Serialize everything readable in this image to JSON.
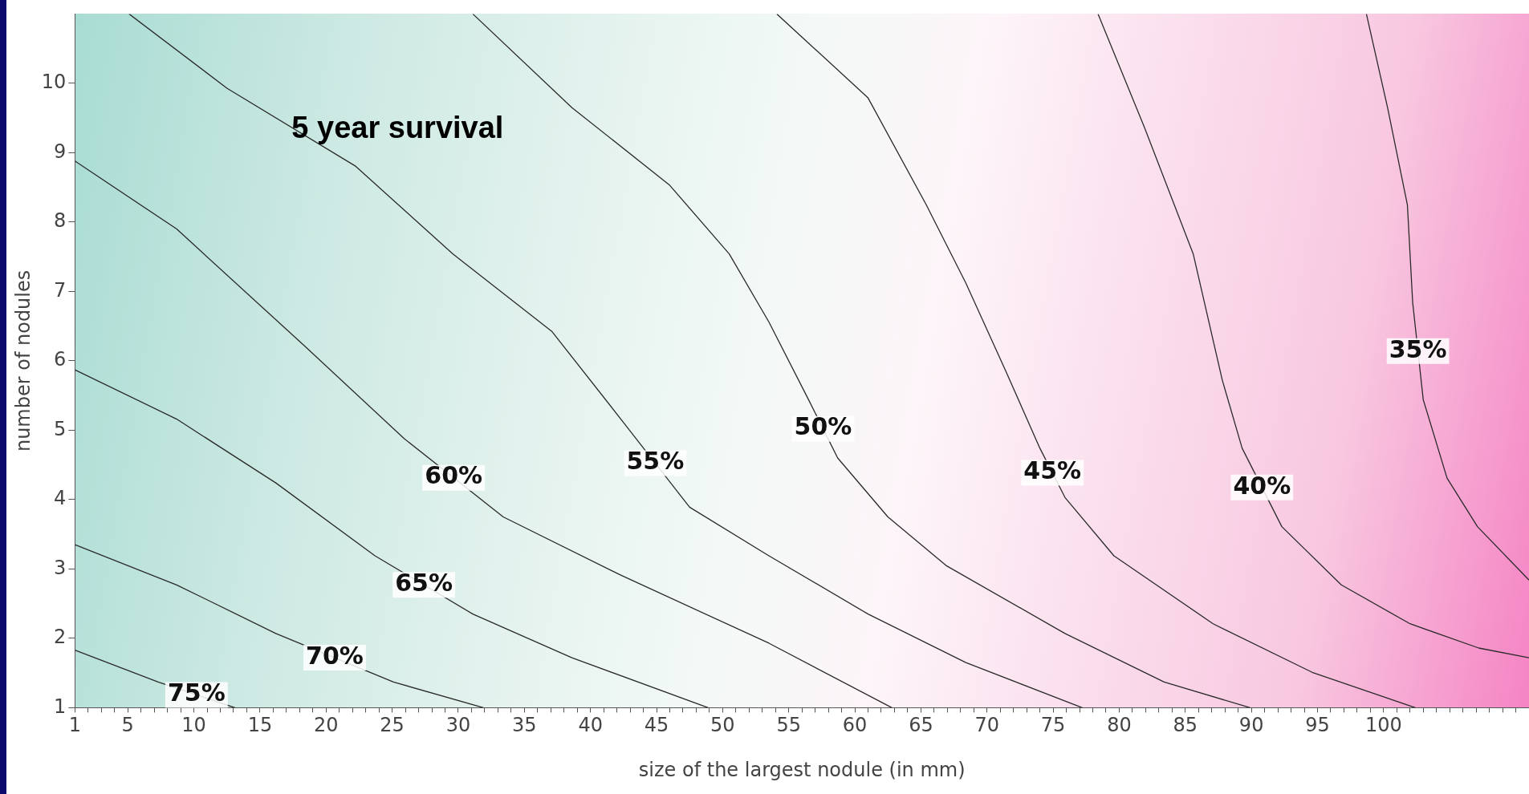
{
  "chart_data": {
    "type": "line",
    "title": "5 year survival",
    "xlabel": "size of the largest nodule (in mm)",
    "ylabel": "number of nodules",
    "xlim": [
      1,
      111
    ],
    "ylim": [
      1,
      11
    ],
    "xticks": [
      1,
      {
        "value": 2,
        "label": null
      },
      {
        "value": 3,
        "label": null
      },
      {
        "value": 4,
        "label": null
      },
      5,
      {
        "value": 6,
        "label": null
      },
      {
        "value": 7,
        "label": null
      },
      {
        "value": 8,
        "label": null
      },
      {
        "value": 9,
        "label": null
      },
      10,
      {
        "value": 11,
        "label": null
      },
      {
        "value": 12,
        "label": null
      },
      {
        "value": 13,
        "label": null
      },
      {
        "value": 14,
        "label": null
      },
      15,
      {
        "value": 16,
        "label": null
      },
      {
        "value": 17,
        "label": null
      },
      {
        "value": 18,
        "label": null
      },
      {
        "value": 19,
        "label": null
      },
      20,
      {
        "value": 21,
        "label": null
      },
      {
        "value": 22,
        "label": null
      },
      {
        "value": 23,
        "label": null
      },
      {
        "value": 24,
        "label": null
      },
      25,
      {
        "value": 26,
        "label": null
      },
      {
        "value": 27,
        "label": null
      },
      {
        "value": 28,
        "label": null
      },
      {
        "value": 29,
        "label": null
      },
      30,
      {
        "value": 31,
        "label": null
      },
      {
        "value": 32,
        "label": null
      },
      {
        "value": 33,
        "label": null
      },
      {
        "value": 34,
        "label": null
      },
      35,
      {
        "value": 36,
        "label": null
      },
      {
        "value": 37,
        "label": null
      },
      {
        "value": 38,
        "label": null
      },
      {
        "value": 39,
        "label": null
      },
      40,
      {
        "value": 41,
        "label": null
      },
      {
        "value": 42,
        "label": null
      },
      {
        "value": 43,
        "label": null
      },
      {
        "value": 44,
        "label": null
      },
      45,
      {
        "value": 46,
        "label": null
      },
      {
        "value": 47,
        "label": null
      },
      {
        "value": 48,
        "label": null
      },
      {
        "value": 49,
        "label": null
      },
      50,
      {
        "value": 51,
        "label": null
      },
      {
        "value": 52,
        "label": null
      },
      {
        "value": 53,
        "label": null
      },
      {
        "value": 54,
        "label": null
      },
      55,
      {
        "value": 56,
        "label": null
      },
      {
        "value": 57,
        "label": null
      },
      {
        "value": 58,
        "label": null
      },
      {
        "value": 59,
        "label": null
      },
      60,
      {
        "value": 61,
        "label": null
      },
      {
        "value": 62,
        "label": null
      },
      {
        "value": 63,
        "label": null
      },
      {
        "value": 64,
        "label": null
      },
      65,
      {
        "value": 66,
        "label": null
      },
      {
        "value": 67,
        "label": null
      },
      {
        "value": 68,
        "label": null
      },
      {
        "value": 69,
        "label": null
      },
      70,
      {
        "value": 71,
        "label": null
      },
      {
        "value": 72,
        "label": null
      },
      {
        "value": 73,
        "label": null
      },
      {
        "value": 74,
        "label": null
      },
      75,
      {
        "value": 76,
        "label": null
      },
      {
        "value": 77,
        "label": null
      },
      {
        "value": 78,
        "label": null
      },
      {
        "value": 79,
        "label": null
      },
      80,
      {
        "value": 81,
        "label": null
      },
      {
        "value": 82,
        "label": null
      },
      {
        "value": 83,
        "label": null
      },
      {
        "value": 84,
        "label": null
      },
      85,
      {
        "value": 86,
        "label": null
      },
      {
        "value": 87,
        "label": null
      },
      {
        "value": 88,
        "label": null
      },
      {
        "value": 89,
        "label": null
      },
      90,
      {
        "value": 91,
        "label": null
      },
      {
        "value": 92,
        "label": null
      },
      {
        "value": 93,
        "label": null
      },
      {
        "value": 94,
        "label": null
      },
      95,
      {
        "value": 96,
        "label": null
      },
      {
        "value": 97,
        "label": null
      },
      {
        "value": 98,
        "label": null
      },
      {
        "value": 99,
        "label": null
      },
      100,
      {
        "value": 101,
        "label": null
      },
      {
        "value": 102,
        "label": null
      },
      {
        "value": 103,
        "label": null
      },
      {
        "value": 104,
        "label": null
      },
      {
        "value": 105,
        "label": null
      },
      {
        "value": 106,
        "label": null
      },
      {
        "value": 107,
        "label": null
      },
      {
        "value": 108,
        "label": null
      },
      {
        "value": 109,
        "label": null
      },
      {
        "value": 110,
        "label": null
      }
    ],
    "yticks": [
      1,
      2,
      3,
      4,
      5,
      6,
      7,
      8,
      9,
      10
    ],
    "legend": false,
    "series": [
      {
        "name": "75%",
        "color": "#2a2a2a",
        "x": [
          1,
          7.3,
          13.1
        ],
        "values": [
          1.83,
          1.37,
          1
        ]
      },
      {
        "name": "70%",
        "color": "#2a2a2a",
        "x": [
          1,
          8.7,
          16.2,
          25.1,
          31.9
        ],
        "values": [
          3.35,
          2.77,
          2.07,
          1.37,
          1
        ]
      },
      {
        "name": "65%",
        "color": "#2a2a2a",
        "x": [
          1,
          8.7,
          16.2,
          23.7,
          31.1,
          38.6,
          48.9
        ],
        "values": [
          5.87,
          5.16,
          4.24,
          3.19,
          2.35,
          1.72,
          1
        ]
      },
      {
        "name": "60%",
        "color": "#2a2a2a",
        "x": [
          1,
          8.7,
          18.4,
          25.9,
          33.4,
          42.3,
          53.5,
          62.8
        ],
        "values": [
          8.88,
          7.9,
          6.21,
          4.88,
          3.75,
          2.91,
          1.93,
          1
        ]
      },
      {
        "name": "55%",
        "color": "#2a2a2a",
        "x": [
          5.1,
          12.5,
          22.2,
          29.6,
          37.1,
          42.3,
          47.5,
          53.5,
          61,
          68.4,
          77.2
        ],
        "values": [
          11,
          9.93,
          8.81,
          7.54,
          6.42,
          5.16,
          3.89,
          3.19,
          2.35,
          1.65,
          1
        ]
      },
      {
        "name": "50%",
        "color": "#2a2a2a",
        "x": [
          31.1,
          38.6,
          46,
          50.5,
          53.5,
          56.5,
          58.7,
          62.5,
          66.9,
          75.9,
          83.4,
          89.9
        ],
        "values": [
          11,
          9.65,
          8.53,
          7.54,
          6.56,
          5.44,
          4.6,
          3.75,
          3.05,
          2.07,
          1.37,
          1
        ]
      },
      {
        "name": "45%",
        "color": "#2a2a2a",
        "x": [
          54.1,
          61,
          65.4,
          68.4,
          71.4,
          74,
          75.9,
          79.6,
          87.1,
          94.6,
          102.4
        ],
        "values": [
          11,
          9.79,
          8.25,
          7.12,
          5.86,
          4.74,
          4.03,
          3.19,
          2.21,
          1.51,
          1
        ]
      },
      {
        "name": "40%",
        "color": "#2a2a2a",
        "x": [
          78.4,
          81.9,
          85.6,
          87.8,
          89.3,
          92.3,
          96.8,
          102,
          107.2,
          111
        ],
        "values": [
          11,
          9.37,
          7.54,
          5.72,
          4.74,
          3.61,
          2.77,
          2.21,
          1.86,
          1.72
        ]
      },
      {
        "name": "35%",
        "color": "#2a2a2a",
        "x": [
          98.7,
          100.3,
          101.8,
          102.2,
          103,
          104.8,
          107.1,
          111
        ],
        "values": [
          11,
          9.65,
          8.25,
          6.84,
          5.44,
          4.31,
          3.61,
          2.84
        ]
      }
    ]
  }
}
